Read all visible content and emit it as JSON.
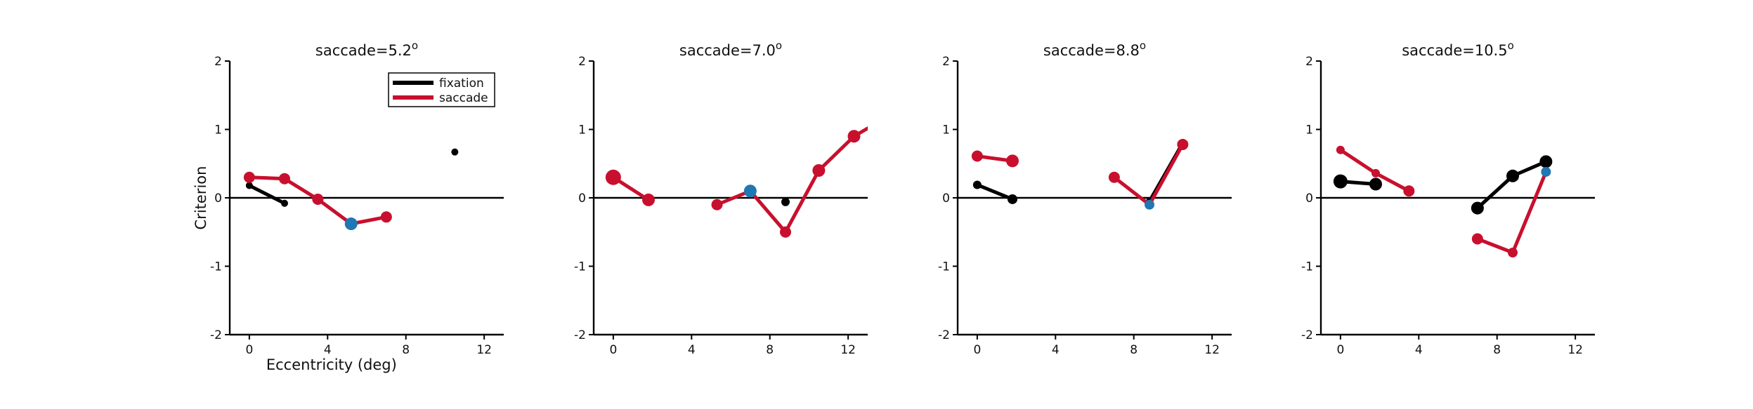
{
  "colors": {
    "fixation": "#000000",
    "saccade": "#c8102e",
    "highlight": "#1f77b4",
    "axis": "#000000"
  },
  "legend": {
    "items": [
      {
        "label": "fixation",
        "color": "#000000"
      },
      {
        "label": "saccade",
        "color": "#c8102e"
      }
    ],
    "placement": "upper-right of first panel"
  },
  "chart_data": [
    {
      "type": "line",
      "title_main": "saccade=5.2",
      "title_sup": "o",
      "xlabel": "Eccentricity (deg)",
      "ylabel": "Criterion",
      "xlim": [
        -1,
        13
      ],
      "ylim": [
        -2,
        2
      ],
      "xticks": [
        0,
        4,
        8,
        12
      ],
      "yticks": [
        -2,
        -1,
        0,
        1,
        2
      ],
      "series": [
        {
          "name": "fixation",
          "color": "#000000",
          "points": [
            {
              "x": 0,
              "y": 0.18,
              "r": 5
            },
            {
              "x": 1.8,
              "y": -0.08,
              "r": 5
            }
          ]
        },
        {
          "name": "fixation",
          "color": "#000000",
          "points": [
            {
              "x": 10.5,
              "y": 0.67,
              "r": 5
            }
          ]
        },
        {
          "name": "saccade",
          "color": "#c8102e",
          "points": [
            {
              "x": 0,
              "y": 0.3,
              "r": 8
            },
            {
              "x": 1.8,
              "y": 0.28,
              "r": 8
            },
            {
              "x": 3.5,
              "y": -0.02,
              "r": 8
            },
            {
              "x": 5.2,
              "y": -0.38,
              "r": 9,
              "highlight": true
            },
            {
              "x": 7.0,
              "y": -0.28,
              "r": 8
            }
          ]
        }
      ]
    },
    {
      "type": "line",
      "title_main": "saccade=7.0",
      "title_sup": "o",
      "xlabel": "",
      "ylabel": "",
      "xlim": [
        -1,
        13
      ],
      "ylim": [
        -2,
        2
      ],
      "xticks": [
        0,
        4,
        8,
        12
      ],
      "yticks": [
        -2,
        -1,
        0,
        1,
        2
      ],
      "series": [
        {
          "name": "fixation",
          "color": "#000000",
          "points": [
            {
              "x": 8.8,
              "y": -0.06,
              "r": 6
            }
          ]
        },
        {
          "name": "saccade",
          "color": "#c8102e",
          "points": [
            {
              "x": 0,
              "y": 0.3,
              "r": 11
            },
            {
              "x": 1.8,
              "y": -0.03,
              "r": 9
            }
          ]
        },
        {
          "name": "saccade",
          "color": "#c8102e",
          "points": [
            {
              "x": 5.3,
              "y": -0.1,
              "r": 8
            },
            {
              "x": 7.0,
              "y": 0.1,
              "r": 9,
              "highlight": true
            },
            {
              "x": 8.8,
              "y": -0.5,
              "r": 8
            },
            {
              "x": 10.5,
              "y": 0.4,
              "r": 9
            },
            {
              "x": 12.3,
              "y": 0.9,
              "r": 9
            },
            {
              "x": 13.5,
              "y": 1.1,
              "r": 8
            }
          ]
        }
      ]
    },
    {
      "type": "line",
      "title_main": "saccade=8.8",
      "title_sup": "o",
      "xlabel": "",
      "ylabel": "",
      "xlim": [
        -1,
        13
      ],
      "ylim": [
        -2,
        2
      ],
      "xticks": [
        0,
        4,
        8,
        12
      ],
      "yticks": [
        -2,
        -1,
        0,
        1,
        2
      ],
      "series": [
        {
          "name": "fixation",
          "color": "#000000",
          "points": [
            {
              "x": 0,
              "y": 0.19,
              "r": 6
            },
            {
              "x": 1.8,
              "y": -0.02,
              "r": 7
            }
          ]
        },
        {
          "name": "fixation",
          "color": "#000000",
          "points": [
            {
              "x": 8.8,
              "y": -0.05,
              "r": 5
            },
            {
              "x": 10.5,
              "y": 0.8,
              "r": 6
            }
          ]
        },
        {
          "name": "saccade",
          "color": "#c8102e",
          "points": [
            {
              "x": 0,
              "y": 0.61,
              "r": 8
            },
            {
              "x": 1.8,
              "y": 0.54,
              "r": 9
            }
          ]
        },
        {
          "name": "saccade",
          "color": "#c8102e",
          "points": [
            {
              "x": 7.0,
              "y": 0.3,
              "r": 8
            },
            {
              "x": 8.8,
              "y": -0.1,
              "r": 7,
              "highlight": true
            },
            {
              "x": 10.5,
              "y": 0.78,
              "r": 8
            }
          ]
        }
      ]
    },
    {
      "type": "line",
      "title_main": "saccade=10.5",
      "title_sup": "o",
      "xlabel": "",
      "ylabel": "",
      "xlim": [
        -1,
        13
      ],
      "ylim": [
        -2,
        2
      ],
      "xticks": [
        0,
        4,
        8,
        12
      ],
      "yticks": [
        -2,
        -1,
        0,
        1,
        2
      ],
      "series": [
        {
          "name": "fixation",
          "color": "#000000",
          "points": [
            {
              "x": 0,
              "y": 0.24,
              "r": 10
            },
            {
              "x": 1.8,
              "y": 0.2,
              "r": 9
            }
          ]
        },
        {
          "name": "fixation",
          "color": "#000000",
          "points": [
            {
              "x": 7.0,
              "y": -0.15,
              "r": 9
            },
            {
              "x": 8.8,
              "y": 0.32,
              "r": 9
            },
            {
              "x": 10.5,
              "y": 0.53,
              "r": 9
            }
          ]
        },
        {
          "name": "saccade",
          "color": "#c8102e",
          "points": [
            {
              "x": 0,
              "y": 0.7,
              "r": 6
            },
            {
              "x": 1.8,
              "y": 0.36,
              "r": 6
            },
            {
              "x": 3.5,
              "y": 0.1,
              "r": 8
            }
          ]
        },
        {
          "name": "saccade",
          "color": "#c8102e",
          "points": [
            {
              "x": 7.0,
              "y": -0.6,
              "r": 8
            },
            {
              "x": 8.8,
              "y": -0.8,
              "r": 7
            },
            {
              "x": 10.5,
              "y": 0.38,
              "r": 7,
              "highlight": true
            }
          ]
        }
      ]
    }
  ]
}
